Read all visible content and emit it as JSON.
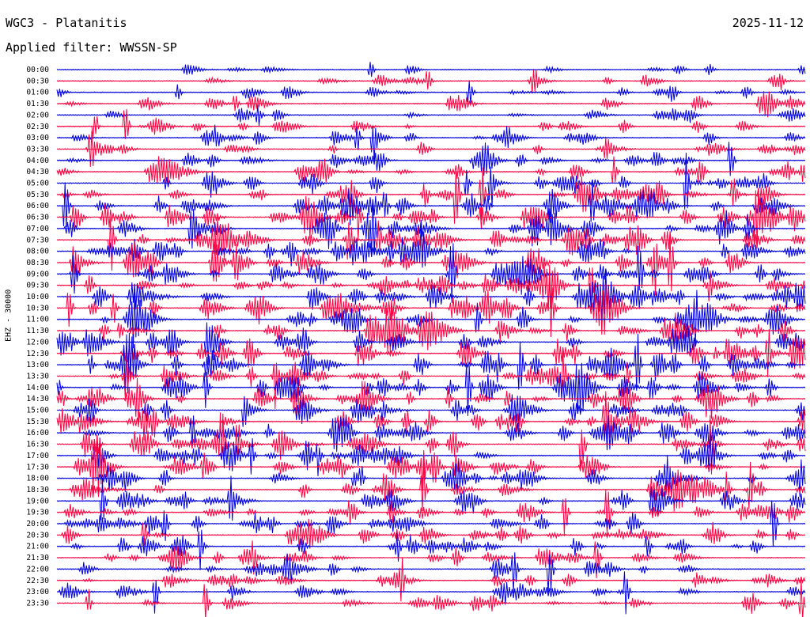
{
  "header": {
    "station": "WGC3 - Platanitis",
    "date": "2025-11-12",
    "filter": "Applied filter: WWSSN-SP"
  },
  "axis": {
    "channel_label": "EHZ - 30000"
  },
  "colors": {
    "trace_a": "#0000e0",
    "trace_b": "#ff0040",
    "background": "#ffffff",
    "text": "#000000"
  },
  "chart_data": {
    "type": "line",
    "title": "WGC3 - Platanitis",
    "subtitle": "Applied filter: WWSSN-SP",
    "ylabel": "EHZ - 30000",
    "xlabel": "",
    "grid": false,
    "row_labels": [
      "00:00",
      "00:30",
      "01:00",
      "01:30",
      "02:00",
      "02:30",
      "03:00",
      "03:30",
      "04:00",
      "04:30",
      "05:00",
      "05:30",
      "06:00",
      "06:30",
      "07:00",
      "07:30",
      "08:00",
      "08:30",
      "09:00",
      "09:30",
      "10:00",
      "10:30",
      "11:00",
      "11:30",
      "12:00",
      "12:30",
      "13:00",
      "13:30",
      "14:00",
      "14:30",
      "15:00",
      "15:30",
      "16:00",
      "16:30",
      "17:00",
      "17:30",
      "18:00",
      "18:30",
      "19:00",
      "19:30",
      "20:00",
      "20:30",
      "21:00",
      "21:30",
      "22:00",
      "22:30",
      "23:00",
      "23:30"
    ],
    "row_colors": [
      "blue",
      "red"
    ],
    "activity_by_row": [
      0.25,
      0.3,
      0.45,
      0.5,
      0.4,
      0.45,
      0.5,
      0.55,
      0.6,
      0.8,
      0.85,
      0.95,
      1.0,
      1.0,
      1.0,
      1.0,
      1.0,
      1.0,
      1.0,
      1.0,
      1.0,
      1.0,
      1.0,
      1.0,
      1.0,
      1.0,
      1.0,
      1.0,
      1.0,
      1.0,
      1.0,
      1.0,
      1.0,
      0.95,
      0.9,
      0.9,
      0.85,
      0.85,
      0.85,
      0.85,
      0.8,
      0.75,
      0.7,
      0.7,
      0.65,
      0.6,
      0.55,
      0.55
    ]
  }
}
